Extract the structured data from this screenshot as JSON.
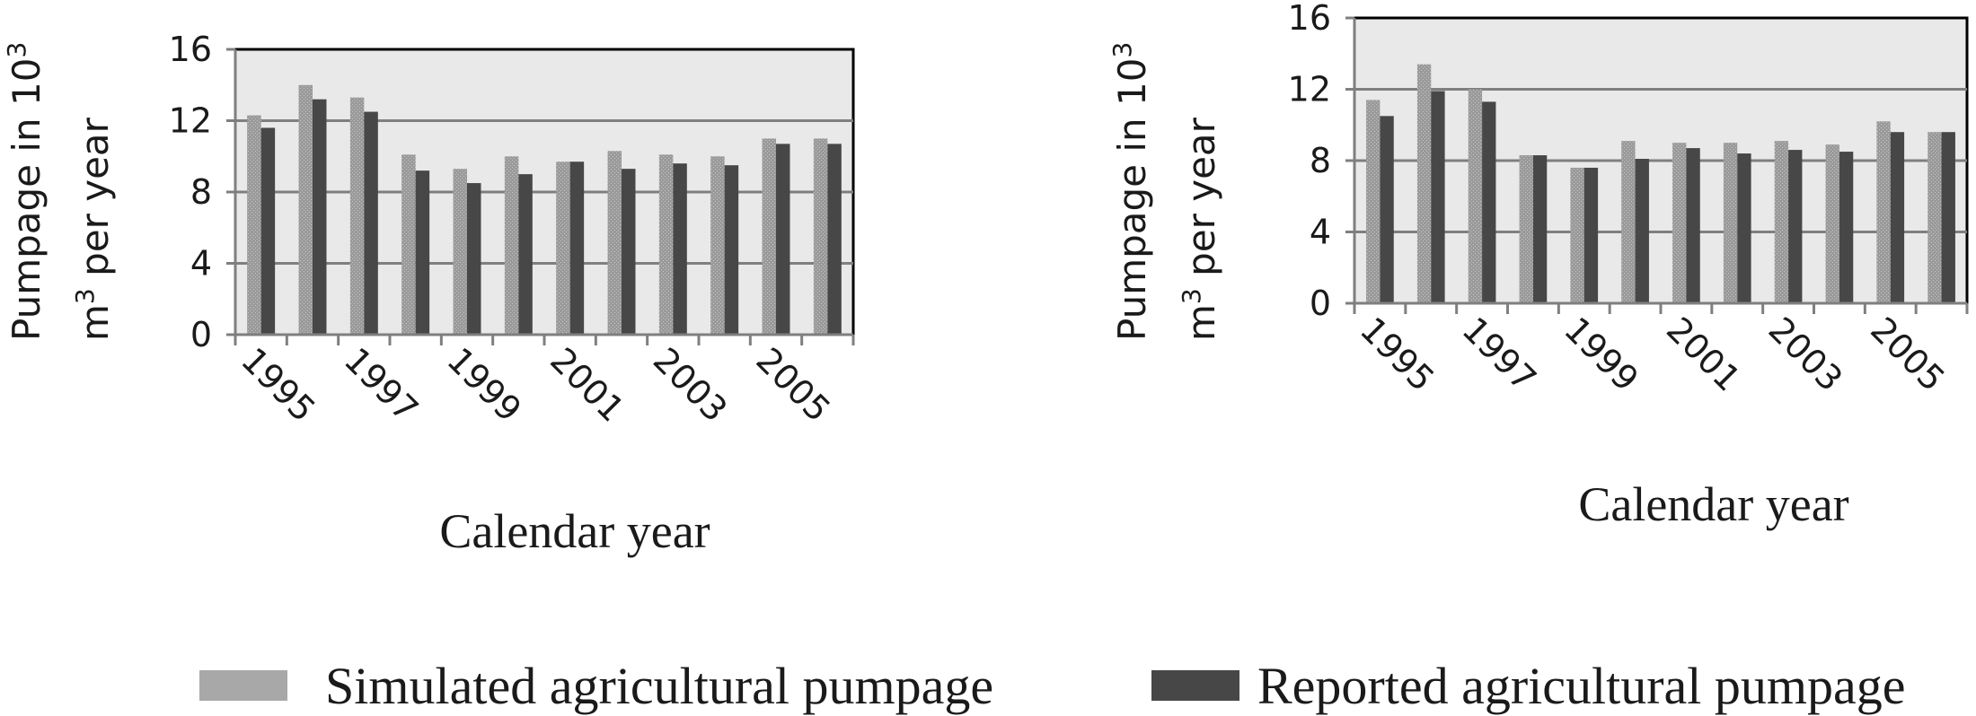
{
  "legend": {
    "simulated_label": "Simulated agricultural pumpage",
    "reported_label": "Reported agricultural pumpage"
  },
  "colors": {
    "simulated": "#9a9a9a",
    "reported": "#474747",
    "plot_bg": "#e9e9e9",
    "axis": "#7f7f7f"
  },
  "chart_data": [
    {
      "type": "bar",
      "title": "",
      "xlabel": "Calendar year",
      "ylabel_line1": "Pumpage in 10",
      "ylabel_sup1": "3",
      "ylabel_line2_prefix": "m",
      "ylabel_sup2": "3",
      "ylabel_line2_suffix": " per year",
      "ylim": [
        0,
        16
      ],
      "yticks": [
        "0",
        "4",
        "8",
        "12",
        "16"
      ],
      "categories": [
        "1995",
        "1996",
        "1997",
        "1998",
        "1999",
        "2000",
        "2001",
        "2002",
        "2003",
        "2004",
        "2005",
        "2006"
      ],
      "xtick_labels": [
        "1995",
        "1997",
        "1999",
        "2001",
        "2003",
        "2005"
      ],
      "grid": true,
      "series": [
        {
          "name": "Simulated agricultural pumpage",
          "values": [
            12.3,
            14.0,
            13.3,
            10.1,
            9.3,
            10.0,
            9.7,
            10.3,
            10.1,
            10.0,
            11.0,
            11.0
          ]
        },
        {
          "name": "Reported agricultural pumpage",
          "values": [
            11.6,
            13.2,
            12.5,
            9.2,
            8.5,
            9.0,
            9.7,
            9.3,
            9.6,
            9.5,
            10.7,
            10.7
          ]
        }
      ]
    },
    {
      "type": "bar",
      "title": "",
      "xlabel": "Calendar year",
      "ylabel_line1": "Pumpage in 10",
      "ylabel_sup1": "3",
      "ylabel_line2_prefix": "m",
      "ylabel_sup2": "3",
      "ylabel_line2_suffix": " per year",
      "ylim": [
        0,
        16
      ],
      "yticks": [
        "0",
        "4",
        "8",
        "12",
        "16"
      ],
      "categories": [
        "1995",
        "1996",
        "1997",
        "1998",
        "1999",
        "2000",
        "2001",
        "2002",
        "2003",
        "2004",
        "2005",
        "2006"
      ],
      "xtick_labels": [
        "1995",
        "1997",
        "1999",
        "2001",
        "2003",
        "2005"
      ],
      "grid": true,
      "series": [
        {
          "name": "Simulated agricultural pumpage",
          "values": [
            11.4,
            13.4,
            12.0,
            8.3,
            7.6,
            9.1,
            9.0,
            9.0,
            9.1,
            8.9,
            10.2,
            9.6
          ]
        },
        {
          "name": "Reported agricultural pumpage",
          "values": [
            10.5,
            11.9,
            11.3,
            8.3,
            7.6,
            8.1,
            8.7,
            8.4,
            8.6,
            8.5,
            9.6,
            9.6
          ]
        }
      ]
    }
  ]
}
